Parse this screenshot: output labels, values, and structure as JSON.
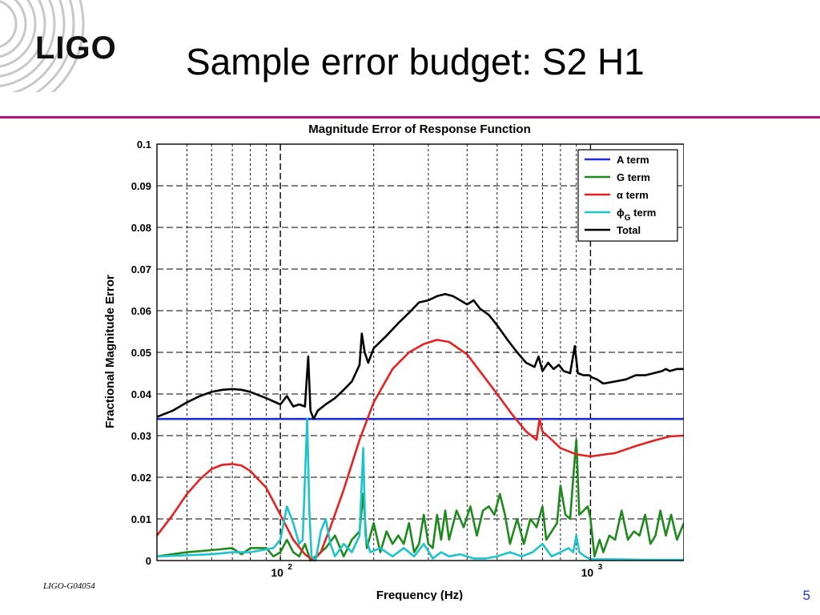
{
  "slide": {
    "logo_text": "LIGO",
    "title": "Sample error budget: S2 H1",
    "footer_id": "LIGO-G04054",
    "page_number": "5",
    "rule_color": "#b4127a"
  },
  "chart_data": {
    "type": "line",
    "title": "Magnitude Error of Response Function",
    "xlabel": "Frequency (Hz)",
    "ylabel": "Fractional Magnitude Error",
    "xscale": "log",
    "xlim": [
      40,
      2000
    ],
    "ylim": [
      0,
      0.1
    ],
    "yticks": [
      "0",
      "0.01",
      "0.02",
      "0.03",
      "0.04",
      "0.05",
      "0.06",
      "0.07",
      "0.08",
      "0.09",
      "0.1"
    ],
    "xticks": [
      {
        "base": "10",
        "exp": "2",
        "value": 100
      },
      {
        "base": "10",
        "exp": "3",
        "value": 1000
      }
    ],
    "grid": true,
    "legend_position": "top-right",
    "legend": [
      {
        "label": "A term",
        "color": "#1f2bd6"
      },
      {
        "label": "G term",
        "color": "#1e8a1e"
      },
      {
        "label": "α term",
        "color": "#e52222"
      },
      {
        "label_main": "ϕ",
        "label_sub": "G",
        "label_rest": " term",
        "color": "#1ec4cc"
      },
      {
        "label": "Total",
        "color": "#000000"
      }
    ],
    "series": [
      {
        "name": "A term",
        "color": "#1f2bd6",
        "points": [
          [
            40,
            0.034
          ],
          [
            2000,
            0.034
          ]
        ]
      },
      {
        "name": "G term",
        "color": "#1e8a1e",
        "points": [
          [
            40,
            0.001
          ],
          [
            50,
            0.002
          ],
          [
            60,
            0.0025
          ],
          [
            70,
            0.003
          ],
          [
            75,
            0.0015
          ],
          [
            80,
            0.003
          ],
          [
            90,
            0.003
          ],
          [
            95,
            0.001
          ],
          [
            100,
            0.002
          ],
          [
            105,
            0.005
          ],
          [
            110,
            0.002
          ],
          [
            115,
            0.001
          ],
          [
            120,
            0.004
          ],
          [
            125,
            0.0
          ],
          [
            130,
            0.001
          ],
          [
            140,
            0.003
          ],
          [
            150,
            0.006
          ],
          [
            160,
            0.001
          ],
          [
            170,
            0.005
          ],
          [
            180,
            0.007
          ],
          [
            185,
            0.016
          ],
          [
            190,
            0.003
          ],
          [
            200,
            0.009
          ],
          [
            210,
            0.002
          ],
          [
            220,
            0.007
          ],
          [
            230,
            0.004
          ],
          [
            240,
            0.006
          ],
          [
            250,
            0.004
          ],
          [
            260,
            0.009
          ],
          [
            270,
            0.002
          ],
          [
            280,
            0.004
          ],
          [
            290,
            0.011
          ],
          [
            300,
            0.004
          ],
          [
            310,
            0.003
          ],
          [
            320,
            0.011
          ],
          [
            330,
            0.005
          ],
          [
            340,
            0.012
          ],
          [
            350,
            0.005
          ],
          [
            370,
            0.012
          ],
          [
            390,
            0.008
          ],
          [
            410,
            0.013
          ],
          [
            430,
            0.006
          ],
          [
            450,
            0.012
          ],
          [
            470,
            0.013
          ],
          [
            490,
            0.011
          ],
          [
            510,
            0.016
          ],
          [
            530,
            0.011
          ],
          [
            550,
            0.004
          ],
          [
            580,
            0.01
          ],
          [
            610,
            0.004
          ],
          [
            640,
            0.01
          ],
          [
            670,
            0.008
          ],
          [
            700,
            0.013
          ],
          [
            720,
            0.005
          ],
          [
            750,
            0.007
          ],
          [
            780,
            0.009
          ],
          [
            800,
            0.018
          ],
          [
            830,
            0.011
          ],
          [
            860,
            0.01
          ],
          [
            880,
            0.02
          ],
          [
            900,
            0.029
          ],
          [
            920,
            0.011
          ],
          [
            950,
            0.012
          ],
          [
            980,
            0.013
          ],
          [
            1000,
            0.01
          ],
          [
            1030,
            0.001
          ],
          [
            1070,
            0.005
          ],
          [
            1100,
            0.002
          ],
          [
            1150,
            0.006
          ],
          [
            1200,
            0.005
          ],
          [
            1260,
            0.012
          ],
          [
            1320,
            0.005
          ],
          [
            1380,
            0.007
          ],
          [
            1440,
            0.006
          ],
          [
            1500,
            0.011
          ],
          [
            1560,
            0.004
          ],
          [
            1620,
            0.006
          ],
          [
            1680,
            0.012
          ],
          [
            1750,
            0.006
          ],
          [
            1820,
            0.011
          ],
          [
            1900,
            0.005
          ],
          [
            2000,
            0.009
          ]
        ]
      },
      {
        "name": "α term",
        "color": "#e52222",
        "points": [
          [
            40,
            0.006
          ],
          [
            45,
            0.011
          ],
          [
            50,
            0.016
          ],
          [
            55,
            0.0195
          ],
          [
            60,
            0.022
          ],
          [
            65,
            0.023
          ],
          [
            70,
            0.0232
          ],
          [
            75,
            0.0228
          ],
          [
            80,
            0.0215
          ],
          [
            90,
            0.0175
          ],
          [
            100,
            0.011
          ],
          [
            110,
            0.005
          ],
          [
            120,
            0.0015
          ],
          [
            128,
            0.0
          ],
          [
            135,
            0.002
          ],
          [
            145,
            0.008
          ],
          [
            160,
            0.017
          ],
          [
            180,
            0.029
          ],
          [
            200,
            0.038
          ],
          [
            230,
            0.046
          ],
          [
            260,
            0.05
          ],
          [
            290,
            0.052
          ],
          [
            320,
            0.053
          ],
          [
            350,
            0.0525
          ],
          [
            400,
            0.0495
          ],
          [
            450,
            0.0445
          ],
          [
            500,
            0.04
          ],
          [
            560,
            0.035
          ],
          [
            620,
            0.031
          ],
          [
            670,
            0.029
          ],
          [
            685,
            0.034
          ],
          [
            700,
            0.031
          ],
          [
            750,
            0.029
          ],
          [
            800,
            0.027
          ],
          [
            900,
            0.0255
          ],
          [
            1000,
            0.025
          ],
          [
            1200,
            0.0258
          ],
          [
            1400,
            0.0275
          ],
          [
            1600,
            0.0288
          ],
          [
            1800,
            0.0298
          ],
          [
            2000,
            0.03
          ]
        ]
      },
      {
        "name": "ϕG term",
        "color": "#1ec4cc",
        "points": [
          [
            40,
            0.001
          ],
          [
            60,
            0.0015
          ],
          [
            70,
            0.002
          ],
          [
            80,
            0.002
          ],
          [
            95,
            0.003
          ],
          [
            100,
            0.005
          ],
          [
            105,
            0.013
          ],
          [
            110,
            0.009
          ],
          [
            115,
            0.004
          ],
          [
            118,
            0.005
          ],
          [
            122,
            0.034
          ],
          [
            124,
            0.012
          ],
          [
            126,
            0.001
          ],
          [
            130,
            0.0
          ],
          [
            135,
            0.007
          ],
          [
            140,
            0.01
          ],
          [
            145,
            0.004
          ],
          [
            150,
            0.001
          ],
          [
            160,
            0.004
          ],
          [
            170,
            0.002
          ],
          [
            180,
            0.006
          ],
          [
            185,
            0.027
          ],
          [
            188,
            0.006
          ],
          [
            195,
            0.002
          ],
          [
            210,
            0.003
          ],
          [
            230,
            0.001
          ],
          [
            250,
            0.003
          ],
          [
            270,
            0.001
          ],
          [
            290,
            0.004
          ],
          [
            310,
            0.0005
          ],
          [
            330,
            0.002
          ],
          [
            350,
            0.001
          ],
          [
            380,
            0.0015
          ],
          [
            420,
            0.0005
          ],
          [
            460,
            0.0005
          ],
          [
            500,
            0.001
          ],
          [
            550,
            0.002
          ],
          [
            600,
            0.001
          ],
          [
            650,
            0.002
          ],
          [
            700,
            0.004
          ],
          [
            750,
            0.001
          ],
          [
            800,
            0.002
          ],
          [
            850,
            0.003
          ],
          [
            880,
            0.002
          ],
          [
            900,
            0.006
          ],
          [
            920,
            0.002
          ],
          [
            960,
            0.001
          ],
          [
            1000,
            0.0003
          ],
          [
            1200,
            0.0003
          ],
          [
            1500,
            0.0002
          ],
          [
            2000,
            0.0002
          ]
        ]
      },
      {
        "name": "Total",
        "color": "#000000",
        "points": [
          [
            40,
            0.0345
          ],
          [
            45,
            0.036
          ],
          [
            50,
            0.038
          ],
          [
            55,
            0.0395
          ],
          [
            60,
            0.0405
          ],
          [
            65,
            0.041
          ],
          [
            70,
            0.0412
          ],
          [
            75,
            0.041
          ],
          [
            80,
            0.0405
          ],
          [
            90,
            0.039
          ],
          [
            100,
            0.0375
          ],
          [
            105,
            0.0395
          ],
          [
            110,
            0.037
          ],
          [
            115,
            0.0375
          ],
          [
            120,
            0.037
          ],
          [
            123,
            0.049
          ],
          [
            125,
            0.036
          ],
          [
            128,
            0.034
          ],
          [
            132,
            0.036
          ],
          [
            140,
            0.0375
          ],
          [
            150,
            0.039
          ],
          [
            160,
            0.041
          ],
          [
            170,
            0.043
          ],
          [
            180,
            0.047
          ],
          [
            183,
            0.0545
          ],
          [
            187,
            0.05
          ],
          [
            192,
            0.0475
          ],
          [
            200,
            0.051
          ],
          [
            220,
            0.054
          ],
          [
            240,
            0.057
          ],
          [
            260,
            0.0595
          ],
          [
            280,
            0.062
          ],
          [
            300,
            0.0625
          ],
          [
            320,
            0.0635
          ],
          [
            340,
            0.064
          ],
          [
            360,
            0.0635
          ],
          [
            380,
            0.0625
          ],
          [
            400,
            0.0615
          ],
          [
            420,
            0.0625
          ],
          [
            440,
            0.0605
          ],
          [
            470,
            0.059
          ],
          [
            500,
            0.0565
          ],
          [
            540,
            0.053
          ],
          [
            580,
            0.05
          ],
          [
            620,
            0.0475
          ],
          [
            660,
            0.0465
          ],
          [
            680,
            0.049
          ],
          [
            700,
            0.0455
          ],
          [
            730,
            0.0475
          ],
          [
            760,
            0.046
          ],
          [
            790,
            0.047
          ],
          [
            820,
            0.0455
          ],
          [
            860,
            0.045
          ],
          [
            890,
            0.0515
          ],
          [
            910,
            0.045
          ],
          [
            950,
            0.0445
          ],
          [
            990,
            0.0445
          ],
          [
            1010,
            0.044
          ],
          [
            1050,
            0.0435
          ],
          [
            1100,
            0.0425
          ],
          [
            1200,
            0.043
          ],
          [
            1300,
            0.0435
          ],
          [
            1400,
            0.0445
          ],
          [
            1500,
            0.0445
          ],
          [
            1600,
            0.045
          ],
          [
            1700,
            0.0455
          ],
          [
            1750,
            0.046
          ],
          [
            1800,
            0.0455
          ],
          [
            1900,
            0.046
          ],
          [
            2000,
            0.046
          ]
        ]
      }
    ]
  }
}
